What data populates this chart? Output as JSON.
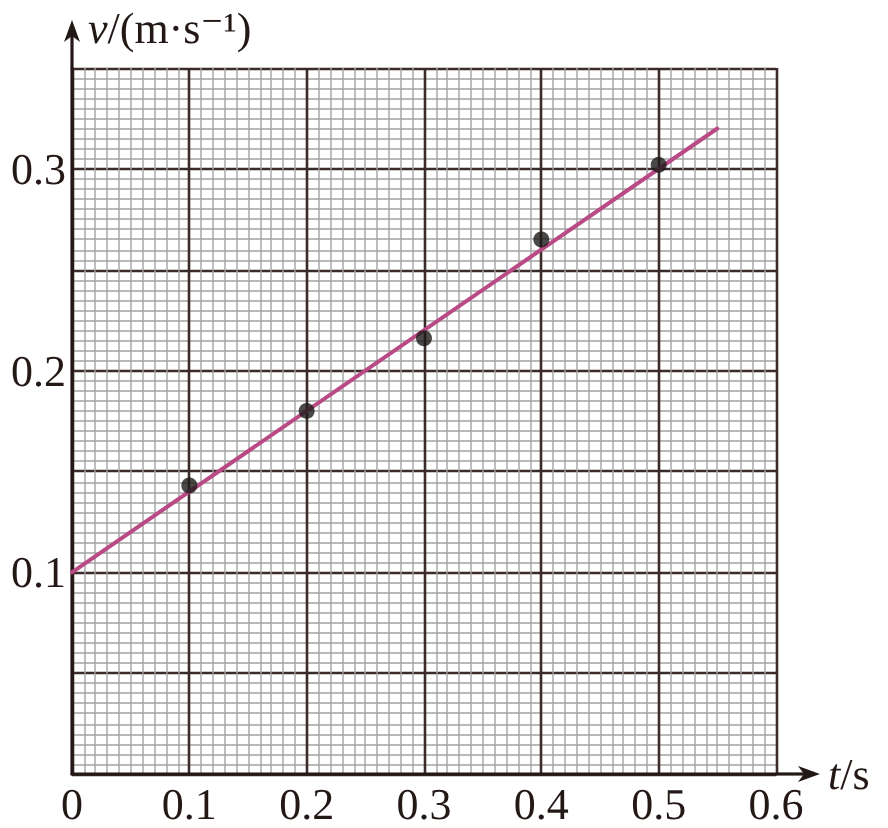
{
  "chart_data": {
    "type": "scatter",
    "xlabel": "t/s",
    "ylabel": "v/(m·s⁻¹)",
    "x": [
      0.1,
      0.2,
      0.3,
      0.4,
      0.5
    ],
    "series": [
      {
        "color": "#1e1a1a",
        "values": [
          0.143,
          0.18,
          0.216,
          0.265,
          0.302
        ]
      },
      {
        "type": "line",
        "x": [
          0,
          0.55
        ],
        "values": [
          0.1,
          0.32
        ],
        "color": "#b94a85",
        "marker": "none"
      }
    ],
    "xlim": [
      0,
      0.6
    ],
    "ylim": [
      0,
      0.35
    ],
    "xticks": [
      0,
      0.1,
      0.2,
      0.3,
      0.4,
      0.5,
      0.6
    ],
    "yticks": [
      {
        "value": 0,
        "label": null
      },
      {
        "value": 0.05,
        "label": null
      },
      0.1,
      {
        "value": 0.15,
        "label": null
      },
      0.2,
      {
        "value": 0.25,
        "label": null
      },
      0.3,
      {
        "value": 0.35,
        "label": null
      }
    ],
    "grid": true,
    "marker": "circle"
  }
}
